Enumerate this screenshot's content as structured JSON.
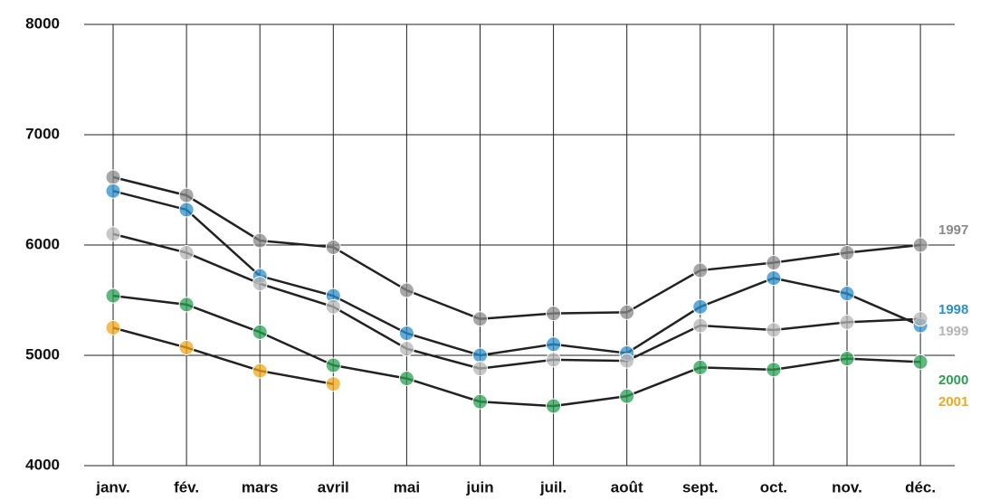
{
  "chart_data": {
    "type": "line",
    "categories": [
      "janv.",
      "fév.",
      "mars",
      "avril",
      "mai",
      "juin",
      "juil.",
      "août",
      "sept.",
      "oct.",
      "nov.",
      "déc."
    ],
    "series": [
      {
        "name": "1997",
        "color": "#8a8a8a",
        "values": [
          6615,
          6450,
          6040,
          5980,
          5590,
          5330,
          5380,
          5390,
          5770,
          5840,
          5930,
          6000
        ]
      },
      {
        "name": "1998",
        "color": "#2b8fcc",
        "values": [
          6490,
          6320,
          5720,
          5540,
          5200,
          5000,
          5100,
          5020,
          5440,
          5700,
          5560,
          5270
        ]
      },
      {
        "name": "1999",
        "color": "#b5b5b5",
        "values": [
          6100,
          5930,
          5650,
          5440,
          5060,
          4880,
          4960,
          4950,
          5270,
          5230,
          5300,
          5330
        ]
      },
      {
        "name": "2000",
        "color": "#2aa052",
        "values": [
          5540,
          5460,
          5210,
          4910,
          4790,
          4580,
          4540,
          4630,
          4890,
          4870,
          4970,
          4940
        ]
      },
      {
        "name": "2001",
        "color": "#f2a81c",
        "values": [
          5250,
          5070,
          4860,
          4740,
          null,
          null,
          null,
          null,
          null,
          null,
          null,
          null
        ]
      }
    ],
    "ylim": [
      4000,
      8000
    ],
    "yticks": [
      4000,
      5000,
      6000,
      7000,
      8000
    ],
    "grid": true
  }
}
